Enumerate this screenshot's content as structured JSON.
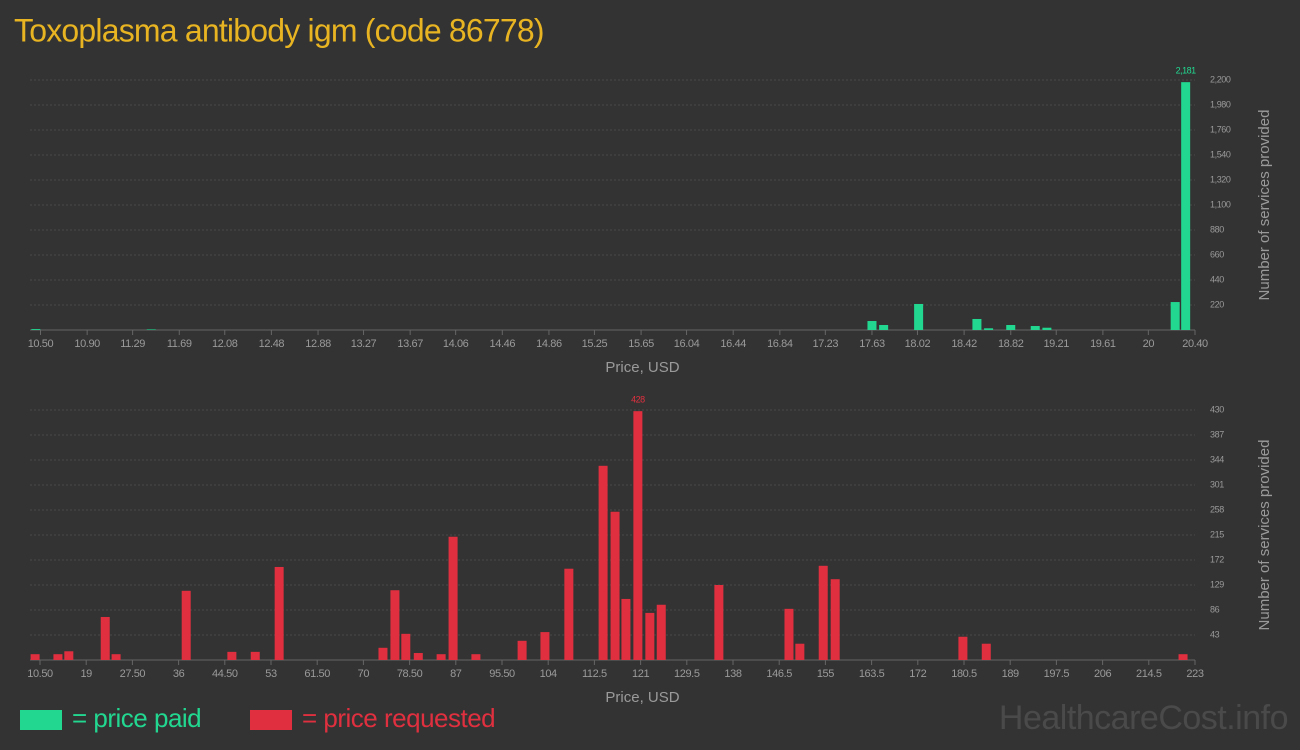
{
  "title": "Toxoplasma antibody igm (code 86778)",
  "watermark": "HealthcareCost.info",
  "chart_data": [
    {
      "type": "bar",
      "xlabel": "Price, USD",
      "ylabel": "Number of services provided",
      "xlim": [
        10.41,
        20.4
      ],
      "ylim": [
        0,
        2200
      ],
      "xticks": [
        {
          "value": 10.5,
          "label": "10.50"
        },
        {
          "value": 10.9,
          "label": "10.90"
        },
        11.29,
        11.69,
        12.08,
        12.48,
        12.88,
        13.27,
        13.67,
        14.06,
        14.46,
        14.86,
        15.25,
        15.65,
        16.04,
        16.44,
        16.84,
        17.23,
        17.63,
        18.02,
        18.42,
        18.82,
        19.21,
        19.61,
        20,
        {
          "value": 20.4,
          "label": "20.40"
        }
      ],
      "yticks": [
        220,
        440,
        660,
        880,
        {
          "value": 1100,
          "label": "1,100"
        },
        {
          "value": 1320,
          "label": "1,320"
        },
        {
          "value": 1540,
          "label": "1,540"
        },
        {
          "value": 1760,
          "label": "1,760"
        },
        {
          "value": 1980,
          "label": "1,980"
        },
        {
          "value": 2200,
          "label": "2,200"
        }
      ],
      "grid": true,
      "series": [
        {
          "name": "= price paid",
          "color": "#22d891",
          "x": [
            10.46,
            11.45,
            17.63,
            17.73,
            18.03,
            18.53,
            18.63,
            18.82,
            19.03,
            19.13,
            20.23,
            20.32
          ],
          "values": [
            8,
            5,
            79,
            44,
            229,
            97,
            15,
            44,
            35,
            20,
            246,
            2181
          ],
          "value_labels": [
            null,
            null,
            null,
            null,
            null,
            null,
            null,
            null,
            null,
            null,
            null,
            "2,181"
          ]
        }
      ]
    },
    {
      "type": "bar",
      "xlabel": "Price, USD",
      "ylabel": "Number of services provided",
      "xlim": [
        8.66,
        223
      ],
      "ylim": [
        0,
        430
      ],
      "xticks": [
        {
          "value": 10.5,
          "label": "10.50"
        },
        19,
        {
          "value": 27.5,
          "label": "27.50"
        },
        36,
        {
          "value": 44.5,
          "label": "44.50"
        },
        53,
        {
          "value": 61.5,
          "label": "61.50"
        },
        70,
        {
          "value": 78.5,
          "label": "78.50"
        },
        87,
        {
          "value": 95.5,
          "label": "95.50"
        },
        104,
        112.5,
        121,
        129.5,
        138,
        146.5,
        155,
        163.5,
        172,
        180.5,
        189,
        197.5,
        206,
        214.5,
        223
      ],
      "yticks": [
        43,
        86,
        129,
        172,
        215,
        258,
        301,
        344,
        387,
        430
      ],
      "grid": true,
      "series": [
        {
          "name": "= price requested",
          "color": "#e0303f",
          "x": [
            9.6,
            13.8,
            15.8,
            22.5,
            24.5,
            37.4,
            45.8,
            50.1,
            54.5,
            73.6,
            75.8,
            77.8,
            80.1,
            84.3,
            86.5,
            90.7,
            99.2,
            103.4,
            107.8,
            114.1,
            116.3,
            118.3,
            120.5,
            122.7,
            124.8,
            135.4,
            148.3,
            150.3,
            154.6,
            156.8,
            180.3,
            184.6,
            220.8
          ],
          "values": [
            10,
            10,
            15,
            74,
            10,
            119,
            14,
            14,
            160,
            21,
            120,
            45,
            12,
            10,
            212,
            10,
            33,
            48,
            157,
            334,
            255,
            105,
            428,
            81,
            95,
            129,
            88,
            28,
            162,
            139,
            40,
            28,
            10
          ],
          "value_labels": [
            null,
            null,
            null,
            null,
            null,
            null,
            null,
            null,
            null,
            null,
            null,
            null,
            null,
            null,
            null,
            null,
            null,
            null,
            null,
            null,
            null,
            null,
            428,
            null,
            null,
            null,
            null,
            null,
            null,
            null,
            null,
            null,
            null
          ]
        }
      ]
    }
  ]
}
